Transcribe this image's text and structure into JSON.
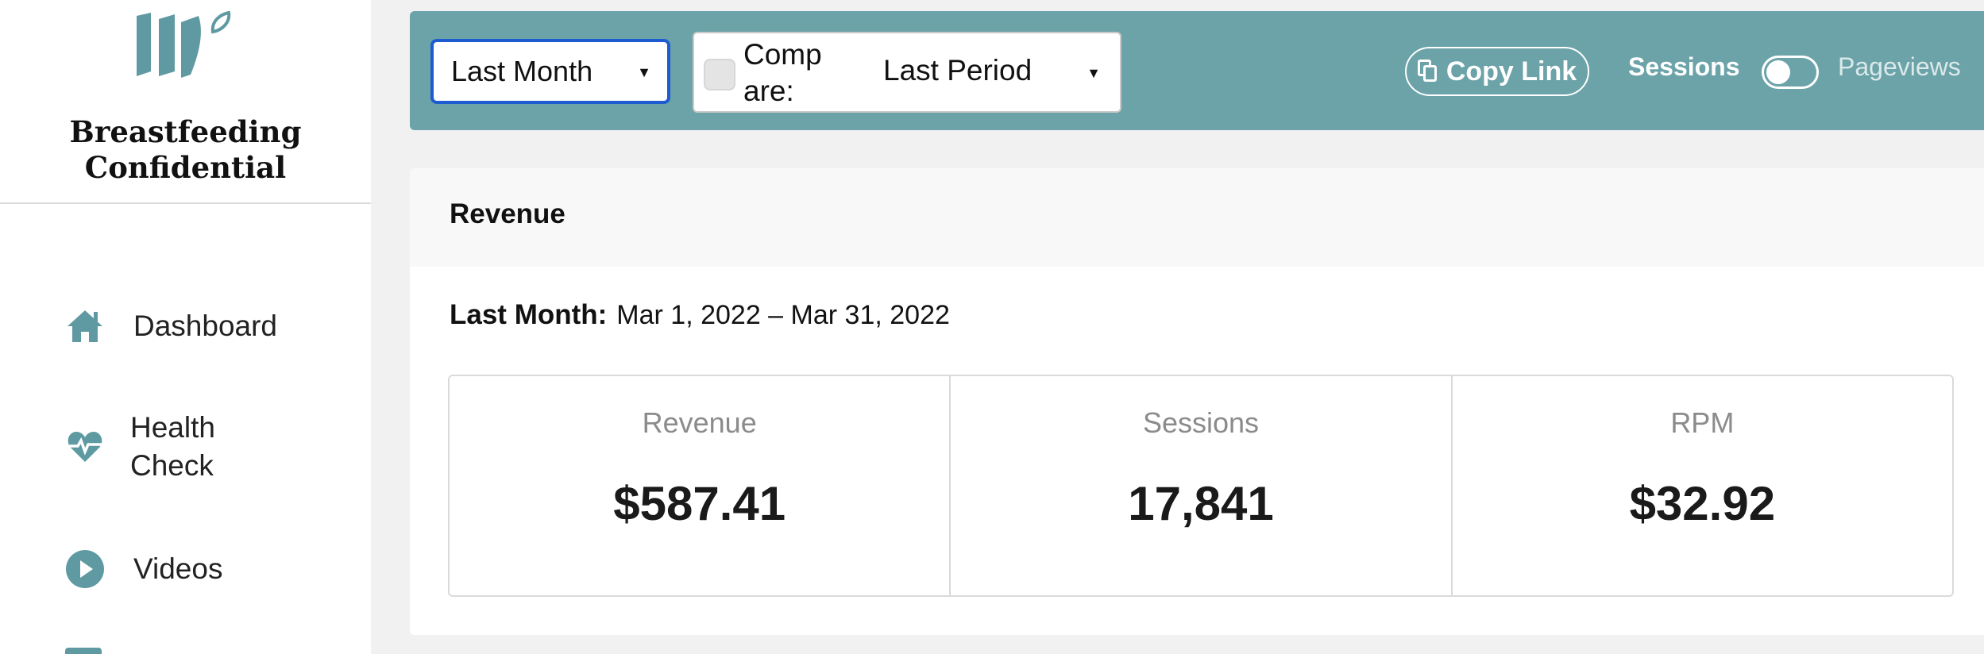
{
  "sidebar": {
    "brand_line1": "Breastfeeding",
    "brand_line2": "Confidential",
    "items": [
      {
        "label": "Dashboard",
        "icon": "home-icon"
      },
      {
        "label": "Health Check",
        "icon": "heartbeat-icon"
      },
      {
        "label": "Videos",
        "icon": "play-icon"
      }
    ]
  },
  "toolbar": {
    "period_select": "Last Month",
    "compare_label": "Compare:",
    "compare_select": "Last Period",
    "copy_link": "Copy Link",
    "toggle_left": "Sessions",
    "toggle_right": "Pageviews"
  },
  "card": {
    "title": "Revenue",
    "period_label": "Last Month:",
    "period_range": "Mar 1, 2022 – Mar 31, 2022",
    "stats": [
      {
        "label": "Revenue",
        "value": "$587.41"
      },
      {
        "label": "Sessions",
        "value": "17,841"
      },
      {
        "label": "RPM",
        "value": "$32.92"
      }
    ]
  },
  "colors": {
    "accent": "#6ba3a9",
    "icon_teal": "#5f9aa2",
    "focus_blue": "#1e5bd1"
  }
}
